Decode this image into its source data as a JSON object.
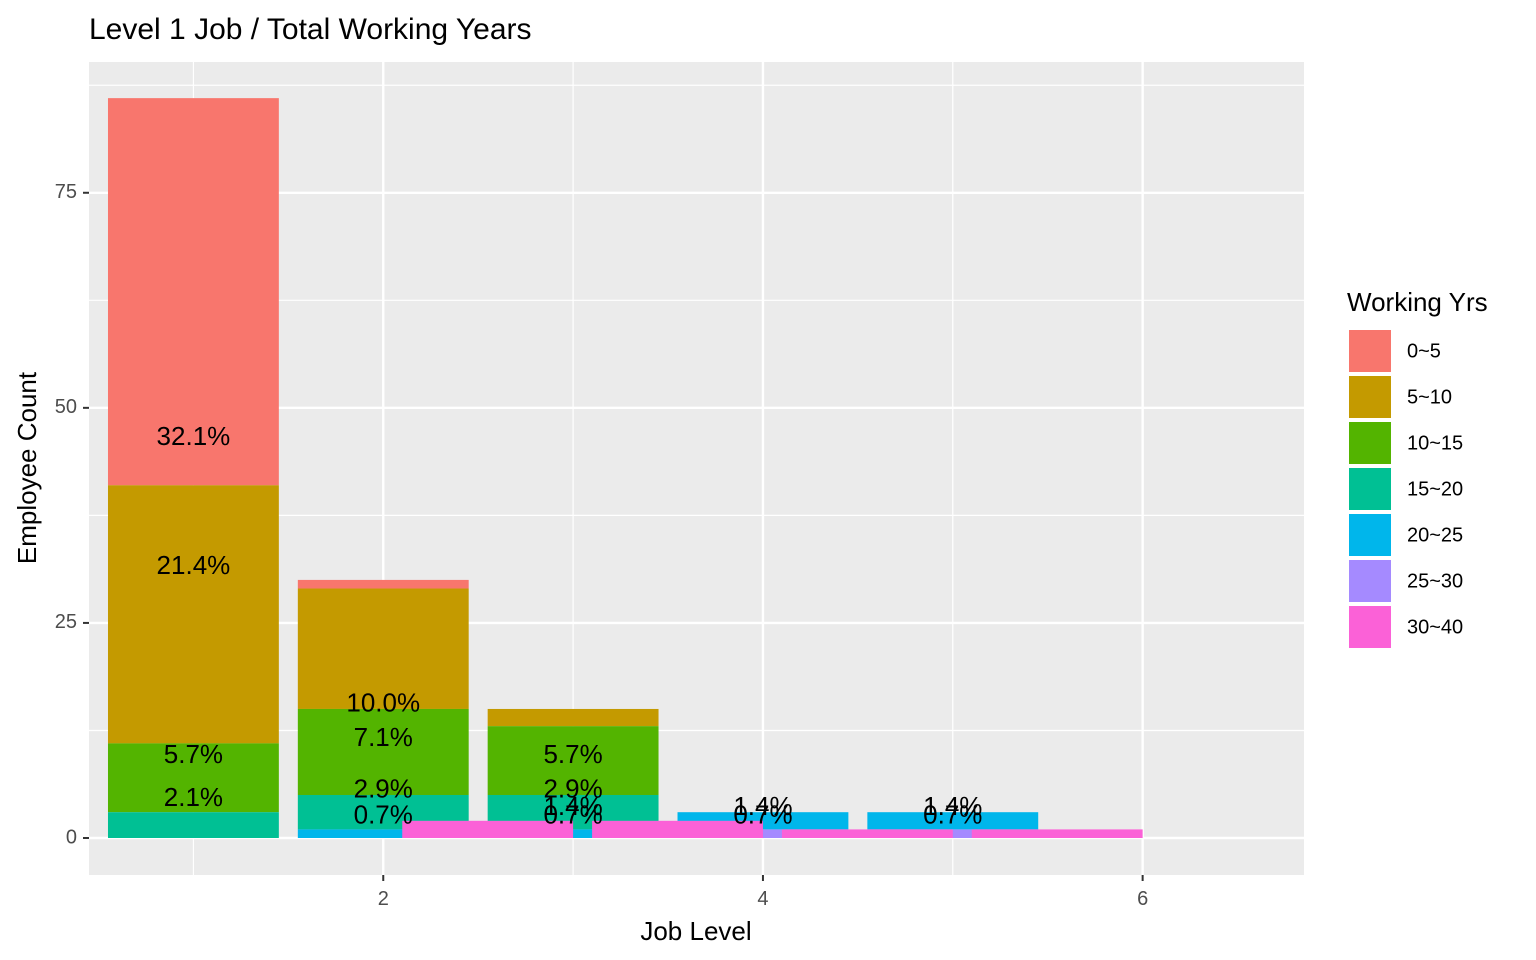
{
  "chart_data": {
    "type": "bar",
    "title": "Level 1 Job / Total Working Years",
    "xlabel": "Job Level",
    "ylabel": "Employee Count",
    "xlim": [
      0.45,
      6.85
    ],
    "ylim": [
      -4.3,
      90.2
    ],
    "x_ticks": [
      2,
      4,
      6
    ],
    "x_minor": [
      1,
      3,
      5
    ],
    "y_ticks": [
      0,
      25,
      50,
      75
    ],
    "grid": true,
    "legend": {
      "title": "Working Yrs",
      "position": "right"
    },
    "bar_width": 0.9,
    "series": [
      {
        "name": "0~5",
        "color": "#F8766D",
        "bars": [
          {
            "x": 1,
            "ymin": 41,
            "ymax": 86
          },
          {
            "x": 2,
            "ymin": 29,
            "ymax": 30
          }
        ]
      },
      {
        "name": "5~10",
        "color": "#C49A00",
        "bars": [
          {
            "x": 1,
            "ymin": 11,
            "ymax": 41
          },
          {
            "x": 2,
            "ymin": 15,
            "ymax": 29
          },
          {
            "x": 3,
            "ymin": 13,
            "ymax": 15
          }
        ]
      },
      {
        "name": "10~15",
        "color": "#53B400",
        "bars": [
          {
            "x": 1,
            "ymin": 3,
            "ymax": 11
          },
          {
            "x": 2,
            "ymin": 5,
            "ymax": 15
          },
          {
            "x": 3,
            "ymin": 5,
            "ymax": 13
          }
        ]
      },
      {
        "name": "15~20",
        "color": "#00C094",
        "bars": [
          {
            "x": 1,
            "ymin": 0,
            "ymax": 3
          },
          {
            "x": 2,
            "ymin": 1,
            "ymax": 5
          },
          {
            "x": 3,
            "ymin": 1,
            "ymax": 5
          }
        ]
      },
      {
        "name": "20~25",
        "color": "#00B6EB",
        "bars": [
          {
            "x": 2,
            "ymin": 0,
            "ymax": 1
          },
          {
            "x": 3,
            "ymin": 0,
            "ymax": 1
          },
          {
            "x": 4,
            "ymin": 1,
            "ymax": 3
          },
          {
            "x": 5,
            "ymin": 1,
            "ymax": 3
          }
        ]
      },
      {
        "name": "25~30",
        "color": "#A58AFF",
        "bars": [
          {
            "x": 4,
            "ymin": 0,
            "ymax": 1
          },
          {
            "x": 5,
            "ymin": 0,
            "ymax": 1
          }
        ]
      },
      {
        "name": "30~40",
        "color": "#FB61D7",
        "bars": [
          {
            "x": 2.55,
            "ymin": 0,
            "ymax": 2
          },
          {
            "x": 4.55,
            "ymin": 0,
            "ymax": 1
          },
          {
            "x": 5.55,
            "ymin": 0,
            "ymax": 1
          },
          {
            "x": 3.55,
            "ymin": 0,
            "ymax": 2
          }
        ]
      }
    ],
    "labels": [
      {
        "text": "32.1%",
        "x": 1,
        "y": 46.5
      },
      {
        "text": "21.4%",
        "x": 1,
        "y": 31.5
      },
      {
        "text": "5.7%",
        "x": 1,
        "y": 9.5
      },
      {
        "text": "2.1%",
        "x": 1,
        "y": 4.5
      },
      {
        "text": "10.0%",
        "x": 2,
        "y": 15.5
      },
      {
        "text": "7.1%",
        "x": 2,
        "y": 11.5
      },
      {
        "text": "2.9%",
        "x": 2,
        "y": 5.5
      },
      {
        "text": "0.7%",
        "x": 2,
        "y": 2.5
      },
      {
        "text": "5.7%",
        "x": 3,
        "y": 9.5
      },
      {
        "text": "2.9%",
        "x": 3,
        "y": 5.5
      },
      {
        "text": "1.4%",
        "x": 3,
        "y": 3.5
      },
      {
        "text": "0.7%",
        "x": 3,
        "y": 2.5
      },
      {
        "text": "1.4%",
        "x": 4,
        "y": 3.5
      },
      {
        "text": "0.7%",
        "x": 4,
        "y": 2.5
      },
      {
        "text": "1.4%",
        "x": 5,
        "y": 3.5
      },
      {
        "text": "0.7%",
        "x": 5,
        "y": 2.5
      }
    ]
  }
}
